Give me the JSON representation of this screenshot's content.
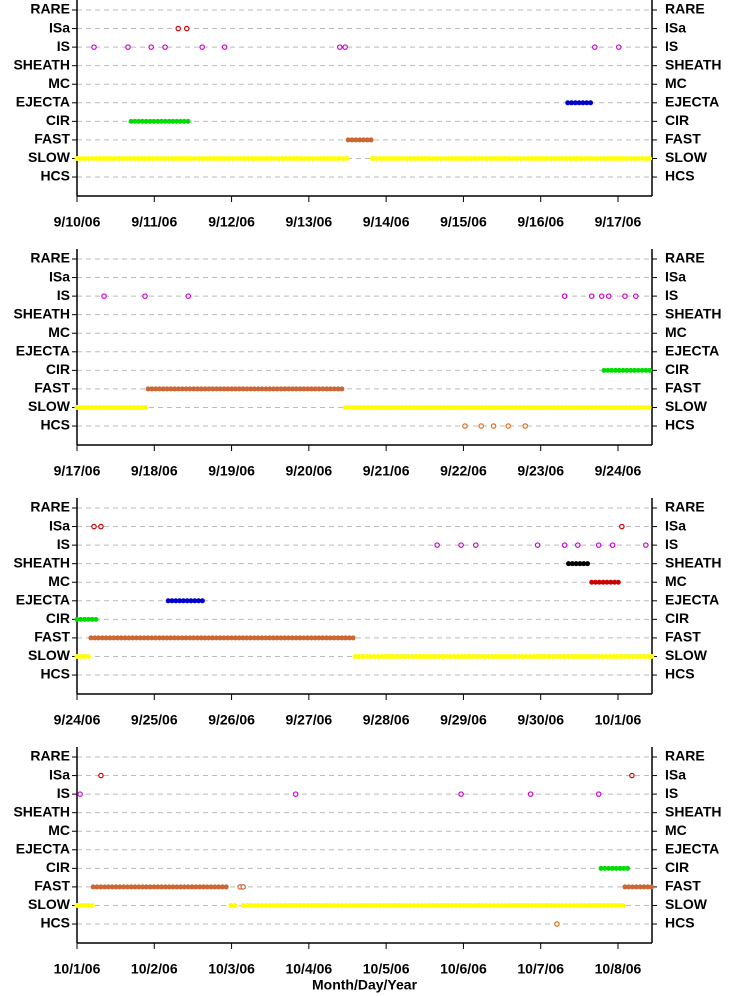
{
  "chart_data": [
    {
      "type": "scatter",
      "categories": [
        "RARE",
        "ISa",
        "IS",
        "SHEATH",
        "MC",
        "EJECTA",
        "CIR",
        "FAST",
        "SLOW",
        "HCS"
      ],
      "xlim": [
        0,
        7.44
      ],
      "xticks": [
        {
          "value": 0,
          "label": "9/10/06"
        },
        {
          "value": 1,
          "label": "9/11/06"
        },
        {
          "value": 2,
          "label": "9/12/06"
        },
        {
          "value": 3,
          "label": "9/13/06"
        },
        {
          "value": 4,
          "label": "9/14/06"
        },
        {
          "value": 5,
          "label": "9/15/06"
        },
        {
          "value": 6,
          "label": "9/16/06"
        },
        {
          "value": 7,
          "label": "9/17/06"
        }
      ],
      "grid": true,
      "series": [
        {
          "name": "ISa",
          "color": "#cc0000",
          "points": [
            1.31,
            1.42
          ]
        },
        {
          "name": "IS",
          "color": "#cc00cc",
          "points": [
            0.22,
            0.66,
            0.96,
            1.14,
            1.62,
            1.91,
            3.4,
            3.47,
            6.7,
            7.01
          ]
        },
        {
          "name": "EJECTA",
          "color": "#0000cc",
          "runs": [
            [
              6.35,
              6.66
            ]
          ]
        },
        {
          "name": "CIR",
          "color": "#00dd00",
          "runs": [
            [
              0.7,
              1.44
            ]
          ]
        },
        {
          "name": "FAST",
          "color": "#cc6633",
          "runs": [
            [
              3.51,
              3.82
            ]
          ]
        },
        {
          "name": "SLOW",
          "color": "#ffff00",
          "runs": [
            [
              0,
              3.51
            ],
            [
              3.82,
              7.44
            ]
          ]
        }
      ]
    },
    {
      "type": "scatter",
      "categories": [
        "RARE",
        "ISa",
        "IS",
        "SHEATH",
        "MC",
        "EJECTA",
        "CIR",
        "FAST",
        "SLOW",
        "HCS"
      ],
      "xlim": [
        0,
        7.44
      ],
      "xticks": [
        {
          "value": 0,
          "label": "9/17/06"
        },
        {
          "value": 1,
          "label": "9/18/06"
        },
        {
          "value": 2,
          "label": "9/19/06"
        },
        {
          "value": 3,
          "label": "9/20/06"
        },
        {
          "value": 4,
          "label": "9/21/06"
        },
        {
          "value": 5,
          "label": "9/22/06"
        },
        {
          "value": 6,
          "label": "9/23/06"
        },
        {
          "value": 7,
          "label": "9/24/06"
        }
      ],
      "grid": true,
      "series": [
        {
          "name": "IS",
          "color": "#cc00cc",
          "points": [
            0.35,
            0.88,
            1.44,
            6.31,
            6.66,
            6.79,
            6.88,
            7.09,
            7.23
          ]
        },
        {
          "name": "CIR",
          "color": "#00dd00",
          "runs": [
            [
              6.82,
              7.44
            ]
          ]
        },
        {
          "name": "FAST",
          "color": "#cc6633",
          "runs": [
            [
              0.92,
              3.47
            ]
          ]
        },
        {
          "name": "SLOW",
          "color": "#ffff00",
          "runs": [
            [
              0,
              0.91
            ],
            [
              3.47,
              7.44
            ]
          ]
        },
        {
          "name": "HCS",
          "color": "#e07020",
          "points": [
            5.02,
            5.23,
            5.39,
            5.58,
            5.8
          ]
        }
      ]
    },
    {
      "type": "scatter",
      "categories": [
        "RARE",
        "ISa",
        "IS",
        "SHEATH",
        "MC",
        "EJECTA",
        "CIR",
        "FAST",
        "SLOW",
        "HCS"
      ],
      "xlim": [
        0,
        7.44
      ],
      "xticks": [
        {
          "value": 0,
          "label": "9/24/06"
        },
        {
          "value": 1,
          "label": "9/25/06"
        },
        {
          "value": 2,
          "label": "9/26/06"
        },
        {
          "value": 3,
          "label": "9/27/06"
        },
        {
          "value": 4,
          "label": "9/28/06"
        },
        {
          "value": 5,
          "label": "9/29/06"
        },
        {
          "value": 6,
          "label": "9/30/06"
        },
        {
          "value": 7,
          "label": "10/1/06"
        }
      ],
      "grid": true,
      "series": [
        {
          "name": "ISa",
          "color": "#cc0000",
          "points": [
            0.22,
            0.31,
            7.05
          ]
        },
        {
          "name": "IS",
          "color": "#cc00cc",
          "points": [
            4.66,
            4.97,
            5.16,
            5.96,
            6.31,
            6.48,
            6.75,
            6.93,
            7.36
          ]
        },
        {
          "name": "SHEATH",
          "color": "#000000",
          "runs": [
            [
              6.36,
              6.61
            ]
          ]
        },
        {
          "name": "MC",
          "color": "#cc0000",
          "runs": [
            [
              6.66,
              7.02
            ]
          ]
        },
        {
          "name": "EJECTA",
          "color": "#0000cc",
          "runs": [
            [
              1.18,
              1.66
            ]
          ]
        },
        {
          "name": "CIR",
          "color": "#00dd00",
          "runs": [
            [
              0,
              0.28
            ]
          ]
        },
        {
          "name": "FAST",
          "color": "#cc6633",
          "runs": [
            [
              0.18,
              3.58
            ]
          ]
        },
        {
          "name": "SLOW",
          "color": "#ffff00",
          "runs": [
            [
              0,
              0.16
            ],
            [
              3.6,
              7.44
            ]
          ]
        }
      ]
    },
    {
      "type": "scatter",
      "categories": [
        "RARE",
        "ISa",
        "IS",
        "SHEATH",
        "MC",
        "EJECTA",
        "CIR",
        "FAST",
        "SLOW",
        "HCS"
      ],
      "xlim": [
        0,
        7.44
      ],
      "xticks": [
        {
          "value": 0,
          "label": "10/1/06"
        },
        {
          "value": 1,
          "label": "10/2/06"
        },
        {
          "value": 2,
          "label": "10/3/06"
        },
        {
          "value": 3,
          "label": "10/4/06"
        },
        {
          "value": 4,
          "label": "10/5/06"
        },
        {
          "value": 5,
          "label": "10/6/06"
        },
        {
          "value": 6,
          "label": "10/7/06"
        },
        {
          "value": 7,
          "label": "10/8/06"
        }
      ],
      "xlabel": "Month/Day/Year",
      "grid": true,
      "series": [
        {
          "name": "ISa",
          "color": "#cc0000",
          "points": [
            0.31,
            7.18
          ]
        },
        {
          "name": "IS",
          "color": "#cc00cc",
          "points": [
            0.04,
            2.83,
            4.97,
            5.87,
            6.75
          ]
        },
        {
          "name": "CIR",
          "color": "#00dd00",
          "runs": [
            [
              6.78,
              7.14
            ]
          ]
        },
        {
          "name": "FAST",
          "color": "#cc6633",
          "runs": [
            [
              0.21,
              1.97
            ],
            [
              7.09,
              7.44
            ]
          ],
          "points": [
            2.11,
            2.15
          ]
        },
        {
          "name": "SLOW",
          "color": "#ffff00",
          "runs": [
            [
              0,
              0.21
            ],
            [
              1.99,
              2.07
            ],
            [
              2.15,
              7.09
            ]
          ]
        },
        {
          "name": "HCS",
          "color": "#e07020",
          "points": [
            6.21
          ]
        }
      ]
    }
  ]
}
